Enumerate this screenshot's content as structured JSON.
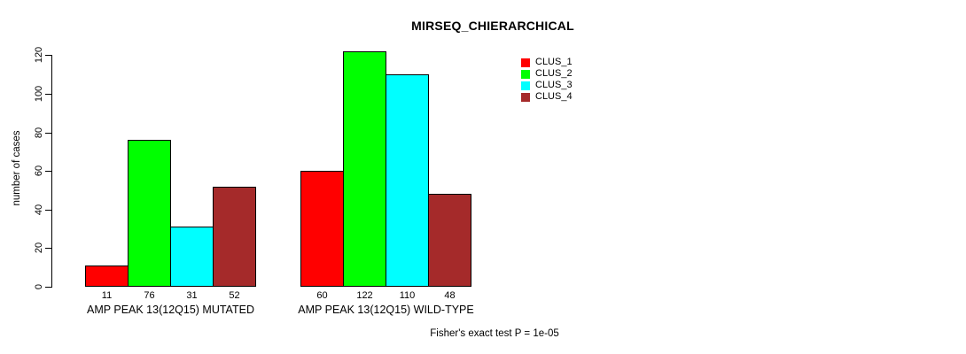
{
  "page": {
    "background": "#ffffff"
  },
  "chart_data": {
    "type": "bar",
    "title": "MIRSEQ_CHIERARCHICAL",
    "ylabel": "number of cases",
    "xlabel": "",
    "ylim": [
      0,
      120
    ],
    "yticks": [
      0,
      20,
      40,
      60,
      80,
      100,
      120
    ],
    "grid": false,
    "categories": [
      "AMP PEAK 13(12Q15) MUTATED",
      "AMP PEAK 13(12Q15) WILD-TYPE"
    ],
    "series": [
      {
        "name": "CLUS_1",
        "color": "#ff0000",
        "values": [
          11,
          60
        ]
      },
      {
        "name": "CLUS_2",
        "color": "#00ff00",
        "values": [
          76,
          122
        ]
      },
      {
        "name": "CLUS_3",
        "color": "#00ffff",
        "values": [
          31,
          110
        ]
      },
      {
        "name": "CLUS_4",
        "color": "#a52a2a",
        "values": [
          52,
          48
        ]
      }
    ],
    "show_values_under_bars": true,
    "legend_position": "top-right",
    "annotation": "Fisher's exact test P = 1e-05",
    "axis_color": "#000000",
    "text_color": "#000000"
  }
}
